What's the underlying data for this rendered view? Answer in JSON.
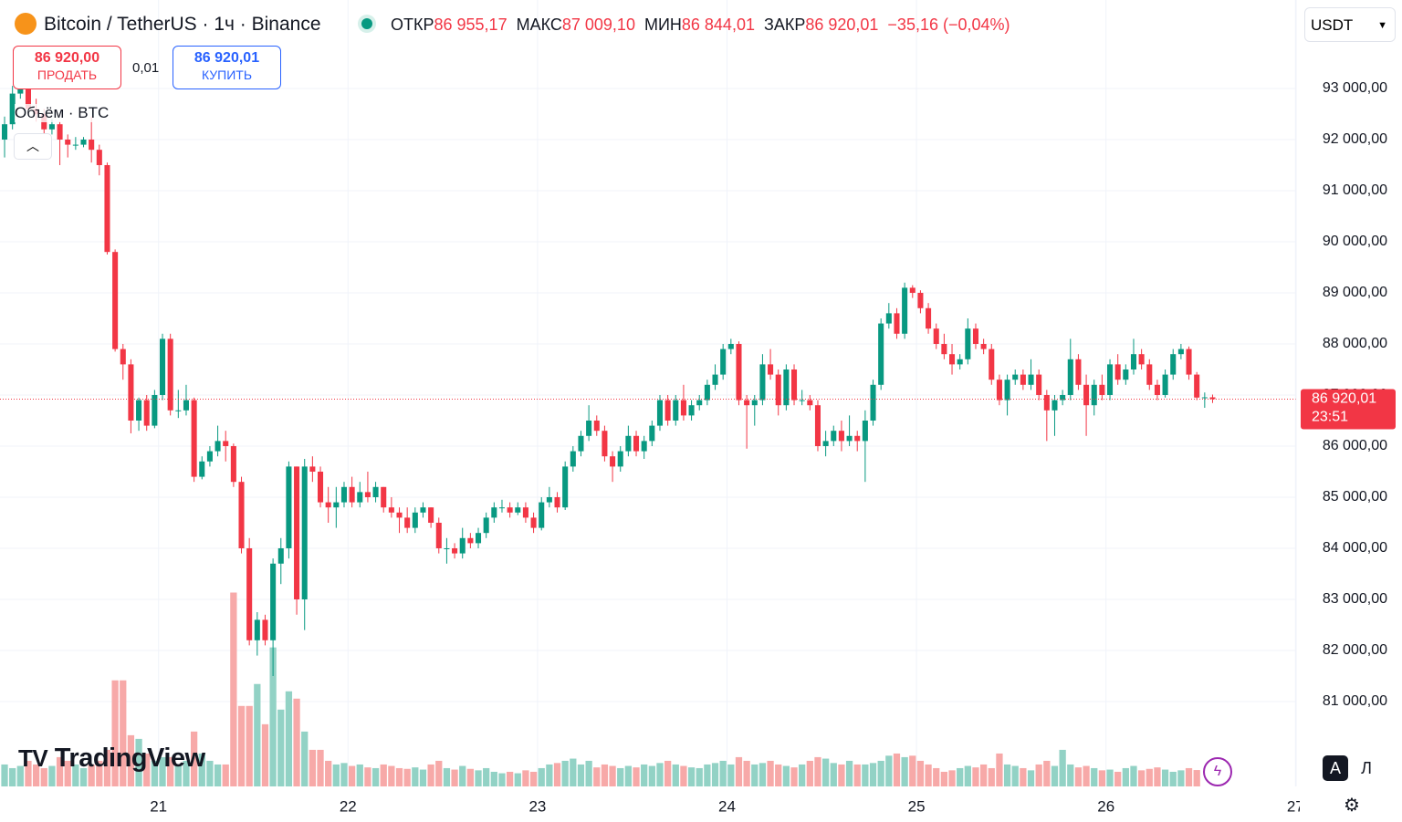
{
  "header": {
    "symbol": "Bitcoin / TetherUS · 1ч · Binance",
    "ohlc": [
      {
        "label": "ОТКР",
        "value": "86 955,17"
      },
      {
        "label": "МАКС",
        "value": "87 009,10"
      },
      {
        "label": "МИН",
        "value": "86 844,01"
      },
      {
        "label": "ЗАКР",
        "value": "86 920,01"
      }
    ],
    "change": "−35,16 (−0,04%)"
  },
  "trade": {
    "sell_price": "86 920,00",
    "sell": "ПРОДАТЬ",
    "spread": "0,01",
    "buy_price": "86 920,01",
    "buy": "КУПИТЬ"
  },
  "currency": "USDT",
  "volume_legend": "Объём · BTC",
  "logo": "TradingView",
  "scale_buttons": [
    "A",
    "Л"
  ],
  "chart_data": {
    "type": "candlestick",
    "up_color": "#089981",
    "down_color": "#f23645",
    "volume_up_color": "#92d2c5",
    "volume_down_color": "#f7a9a8",
    "candles": [
      [
        92000,
        92450,
        91650,
        92300
      ],
      [
        92300,
        93050,
        92200,
        92900
      ],
      [
        92900,
        93150,
        92800,
        93000
      ],
      [
        93000,
        93000,
        92500,
        92600
      ],
      [
        92600,
        92800,
        92350,
        92500
      ],
      [
        92500,
        92600,
        92100,
        92200
      ],
      [
        92200,
        92400,
        92100,
        92300
      ],
      [
        92300,
        92350,
        91500,
        92000
      ],
      [
        92000,
        92100,
        91650,
        91900
      ],
      [
        91900,
        92050,
        91800,
        91900
      ],
      [
        91900,
        92050,
        91850,
        92000
      ],
      [
        92000,
        92450,
        91550,
        91800
      ],
      [
        91800,
        91900,
        91300,
        91500
      ],
      [
        91500,
        91550,
        89750,
        89800
      ],
      [
        89800,
        89850,
        87850,
        87900
      ],
      [
        87900,
        88000,
        87300,
        87600
      ],
      [
        87600,
        87700,
        86250,
        86500
      ],
      [
        86500,
        86950,
        86300,
        86900
      ],
      [
        86900,
        87000,
        86300,
        86400
      ],
      [
        86400,
        87100,
        86350,
        87000
      ],
      [
        87000,
        88200,
        86900,
        88100
      ],
      [
        88100,
        88200,
        86600,
        86700
      ],
      [
        86700,
        87100,
        86550,
        86700
      ],
      [
        86700,
        87200,
        86600,
        86900
      ],
      [
        86900,
        86950,
        85300,
        85400
      ],
      [
        85400,
        85800,
        85350,
        85700
      ],
      [
        85700,
        86000,
        85600,
        85900
      ],
      [
        85900,
        86400,
        85800,
        86100
      ],
      [
        86100,
        86300,
        85700,
        86000
      ],
      [
        86000,
        86050,
        85200,
        85300
      ],
      [
        85300,
        85400,
        83900,
        84000
      ],
      [
        84000,
        84200,
        82100,
        82200
      ],
      [
        82200,
        82750,
        81900,
        82600
      ],
      [
        82600,
        82700,
        82100,
        82200
      ],
      [
        82200,
        83800,
        81500,
        83700
      ],
      [
        83700,
        84200,
        83300,
        84000
      ],
      [
        84000,
        85700,
        83800,
        85600
      ],
      [
        85600,
        85600,
        82700,
        83000
      ],
      [
        83000,
        85750,
        82400,
        85600
      ],
      [
        85600,
        85800,
        85300,
        85500
      ],
      [
        85500,
        85600,
        84800,
        84900
      ],
      [
        84900,
        85200,
        84500,
        84800
      ],
      [
        84800,
        85200,
        84400,
        84900
      ],
      [
        84900,
        85300,
        84800,
        85200
      ],
      [
        85200,
        85400,
        84800,
        84900
      ],
      [
        84900,
        85300,
        84800,
        85100
      ],
      [
        85100,
        85500,
        84900,
        85000
      ],
      [
        85000,
        85300,
        84900,
        85200
      ],
      [
        85200,
        85200,
        84700,
        84800
      ],
      [
        84800,
        85000,
        84600,
        84700
      ],
      [
        84700,
        84800,
        84300,
        84600
      ],
      [
        84600,
        84800,
        84300,
        84400
      ],
      [
        84400,
        84800,
        84300,
        84700
      ],
      [
        84700,
        84900,
        84600,
        84800
      ],
      [
        84800,
        84800,
        84400,
        84500
      ],
      [
        84500,
        84600,
        83900,
        84000
      ],
      [
        84000,
        84200,
        83700,
        84000
      ],
      [
        84000,
        84100,
        83800,
        83900
      ],
      [
        83900,
        84400,
        83800,
        84200
      ],
      [
        84200,
        84300,
        84000,
        84100
      ],
      [
        84100,
        84400,
        84000,
        84300
      ],
      [
        84300,
        84700,
        84200,
        84600
      ],
      [
        84600,
        84900,
        84500,
        84800
      ],
      [
        84800,
        84950,
        84700,
        84800
      ],
      [
        84800,
        84900,
        84600,
        84700
      ],
      [
        84700,
        84900,
        84650,
        84800
      ],
      [
        84800,
        84900,
        84500,
        84600
      ],
      [
        84600,
        84700,
        84300,
        84400
      ],
      [
        84400,
        85000,
        84350,
        84900
      ],
      [
        84900,
        85200,
        84800,
        85000
      ],
      [
        85000,
        85100,
        84700,
        84800
      ],
      [
        84800,
        85700,
        84750,
        85600
      ],
      [
        85600,
        86000,
        85500,
        85900
      ],
      [
        85900,
        86300,
        85800,
        86200
      ],
      [
        86200,
        86800,
        86100,
        86500
      ],
      [
        86500,
        86600,
        86200,
        86300
      ],
      [
        86300,
        86400,
        85700,
        85800
      ],
      [
        85800,
        85900,
        85300,
        85600
      ],
      [
        85600,
        86000,
        85500,
        85900
      ],
      [
        85900,
        86400,
        85800,
        86200
      ],
      [
        86200,
        86300,
        85800,
        85900
      ],
      [
        85900,
        86200,
        85750,
        86100
      ],
      [
        86100,
        86500,
        86000,
        86400
      ],
      [
        86400,
        87000,
        86300,
        86900
      ],
      [
        86900,
        87000,
        86400,
        86500
      ],
      [
        86500,
        87000,
        86400,
        86900
      ],
      [
        86900,
        87200,
        86500,
        86600
      ],
      [
        86600,
        86900,
        86500,
        86800
      ],
      [
        86800,
        87000,
        86700,
        86900
      ],
      [
        86900,
        87300,
        86800,
        87200
      ],
      [
        87200,
        87600,
        87100,
        87400
      ],
      [
        87400,
        88000,
        87300,
        87900
      ],
      [
        87900,
        88100,
        87800,
        88000
      ],
      [
        88000,
        88050,
        86800,
        86900
      ],
      [
        86900,
        87000,
        85950,
        86800
      ],
      [
        86800,
        87000,
        86400,
        86900
      ],
      [
        86900,
        87800,
        86800,
        87600
      ],
      [
        87600,
        87900,
        87300,
        87400
      ],
      [
        87400,
        87500,
        86600,
        86800
      ],
      [
        86800,
        87600,
        86700,
        87500
      ],
      [
        87500,
        87600,
        86800,
        86900
      ],
      [
        86900,
        87100,
        86800,
        86900
      ],
      [
        86900,
        87000,
        86700,
        86800
      ],
      [
        86800,
        86900,
        85900,
        86000
      ],
      [
        86000,
        86300,
        85800,
        86100
      ],
      [
        86100,
        86400,
        86000,
        86300
      ],
      [
        86300,
        86500,
        85900,
        86100
      ],
      [
        86100,
        86600,
        86000,
        86200
      ],
      [
        86200,
        86300,
        85900,
        86100
      ],
      [
        86100,
        86700,
        85300,
        86500
      ],
      [
        86500,
        87300,
        86400,
        87200
      ],
      [
        87200,
        88500,
        87100,
        88400
      ],
      [
        88400,
        88800,
        88300,
        88600
      ],
      [
        88600,
        88700,
        88100,
        88200
      ],
      [
        88200,
        89200,
        88100,
        89100
      ],
      [
        89100,
        89150,
        88900,
        89000
      ],
      [
        89000,
        89050,
        88600,
        88700
      ],
      [
        88700,
        88800,
        88200,
        88300
      ],
      [
        88300,
        88400,
        87900,
        88000
      ],
      [
        88000,
        88200,
        87700,
        87800
      ],
      [
        87800,
        88000,
        87400,
        87600
      ],
      [
        87600,
        87800,
        87500,
        87700
      ],
      [
        87700,
        88500,
        87600,
        88300
      ],
      [
        88300,
        88400,
        87900,
        88000
      ],
      [
        88000,
        88100,
        87800,
        87900
      ],
      [
        87900,
        88000,
        87200,
        87300
      ],
      [
        87300,
        87400,
        86800,
        86900
      ],
      [
        86900,
        87400,
        86600,
        87300
      ],
      [
        87300,
        87500,
        87200,
        87400
      ],
      [
        87400,
        87500,
        87100,
        87200
      ],
      [
        87200,
        87700,
        87100,
        87400
      ],
      [
        87400,
        87500,
        86900,
        87000
      ],
      [
        87000,
        87100,
        86100,
        86700
      ],
      [
        86700,
        87000,
        86200,
        86900
      ],
      [
        86900,
        87100,
        86800,
        87000
      ],
      [
        87000,
        88100,
        86900,
        87700
      ],
      [
        87700,
        87800,
        87100,
        87200
      ],
      [
        87200,
        87400,
        86200,
        86800
      ],
      [
        86800,
        87300,
        86600,
        87200
      ],
      [
        87200,
        87400,
        86900,
        87000
      ],
      [
        87000,
        87700,
        86900,
        87600
      ],
      [
        87600,
        87800,
        87200,
        87300
      ],
      [
        87300,
        87600,
        87200,
        87500
      ],
      [
        87500,
        88100,
        87400,
        87800
      ],
      [
        87800,
        87900,
        87500,
        87600
      ],
      [
        87600,
        87700,
        87100,
        87200
      ],
      [
        87200,
        87300,
        86900,
        87000
      ],
      [
        87000,
        87500,
        86950,
        87400
      ],
      [
        87400,
        87900,
        87300,
        87800
      ],
      [
        87800,
        88000,
        87700,
        87900
      ],
      [
        87900,
        87950,
        87300,
        87400
      ],
      [
        87400,
        87450,
        86900,
        86950
      ],
      [
        86950,
        87050,
        86750,
        86955.17
      ],
      [
        86955.17,
        87009.1,
        86844.01,
        86920.01
      ]
    ],
    "volumes": [
      300,
      250,
      280,
      350,
      300,
      250,
      280,
      400,
      350,
      300,
      250,
      300,
      350,
      500,
      1450,
      1450,
      700,
      650,
      450,
      350,
      400,
      400,
      300,
      350,
      750,
      450,
      350,
      300,
      300,
      2650,
      1100,
      1100,
      1400,
      850,
      1900,
      1050,
      1300,
      1200,
      750,
      500,
      500,
      350,
      300,
      320,
      280,
      300,
      260,
      250,
      300,
      280,
      250,
      240,
      260,
      230,
      300,
      350,
      250,
      230,
      280,
      240,
      220,
      250,
      200,
      180,
      200,
      180,
      220,
      200,
      250,
      300,
      320,
      350,
      380,
      300,
      350,
      260,
      300,
      280,
      250,
      280,
      260,
      300,
      280,
      320,
      350,
      300,
      280,
      260,
      250,
      300,
      320,
      350,
      300,
      400,
      350,
      300,
      320,
      350,
      300,
      280,
      260,
      300,
      350,
      400,
      380,
      320,
      300,
      350,
      300,
      300,
      320,
      350,
      420,
      450,
      400,
      420,
      350,
      300,
      250,
      200,
      220,
      250,
      280,
      260,
      300,
      250,
      450,
      300,
      280,
      250,
      220,
      300,
      350,
      280,
      500,
      300,
      260,
      280,
      250,
      220,
      230,
      200,
      250,
      280,
      220,
      240,
      260,
      230,
      200,
      220,
      250,
      224
    ],
    "ylim": [
      79339,
      94732
    ],
    "vlim": [
      0,
      10750
    ],
    "xlim": [
      -0.58,
      163.58
    ],
    "yticks": [
      {
        "value": 81000,
        "label": "81 000,00"
      },
      {
        "value": 82000,
        "label": "82 000,00"
      },
      {
        "value": 83000,
        "label": "83 000,00"
      },
      {
        "value": 84000,
        "label": "84 000,00"
      },
      {
        "value": 85000,
        "label": "85 000,00"
      },
      {
        "value": 86000,
        "label": "86 000,00"
      },
      {
        "value": 87000,
        "label": "87 000,00"
      },
      {
        "value": 88000,
        "label": "88 000,00"
      },
      {
        "value": 89000,
        "label": "89 000,00"
      },
      {
        "value": 90000,
        "label": "90 000,00"
      },
      {
        "value": 91000,
        "label": "91 000,00"
      },
      {
        "value": 92000,
        "label": "92 000,00"
      },
      {
        "value": 93000,
        "label": "93 000,00"
      }
    ],
    "xticks": [
      {
        "value": 19.5,
        "label": "21"
      },
      {
        "value": 43.5,
        "label": "22"
      },
      {
        "value": 67.5,
        "label": "23"
      },
      {
        "value": 91.5,
        "label": "24"
      },
      {
        "value": 115.5,
        "label": "25"
      },
      {
        "value": 139.5,
        "label": "26"
      },
      {
        "value": 163.5,
        "label": "27"
      }
    ],
    "grid": true,
    "last_price": {
      "value": 86920.01,
      "label": "86 920,01",
      "timer": "23:51"
    }
  }
}
